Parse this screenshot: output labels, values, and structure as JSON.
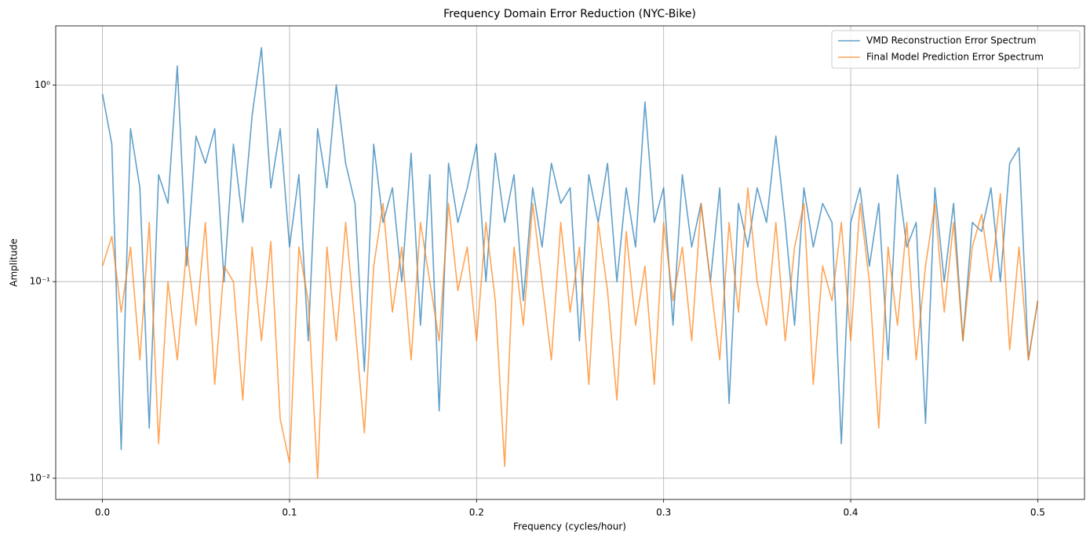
{
  "chart_data": {
    "type": "line",
    "title": "Frequency Domain Error Reduction (NYC-Bike)",
    "xlabel": "Frequency (cycles/hour)",
    "ylabel": "Amplitude",
    "yscale": "log",
    "grid": true,
    "legend": "upper right",
    "alpha": 0.7,
    "xlim": [
      -0.025,
      0.525
    ],
    "ylim": [
      0.0078,
      2.0
    ],
    "xticks": [
      {
        "value": 0,
        "label": "0.0"
      },
      0.1,
      0.2,
      0.3,
      0.4,
      0.5
    ],
    "yticks": [
      {
        "value": 0.01,
        "label": "10⁻²"
      },
      {
        "value": 0.1,
        "label": "10⁻¹"
      },
      {
        "value": 1,
        "label": "10⁰"
      }
    ],
    "x": [
      0,
      0.005,
      0.01,
      0.015,
      0.02,
      0.025,
      0.03,
      0.035,
      0.04,
      0.045,
      0.05,
      0.055,
      0.06,
      0.065,
      0.07,
      0.075,
      0.08,
      0.085,
      0.09,
      0.095,
      0.1,
      0.105,
      0.11,
      0.115,
      0.12,
      0.125,
      0.13,
      0.135,
      0.14,
      0.145,
      0.15,
      0.155,
      0.16,
      0.165,
      0.17,
      0.175,
      0.18,
      0.185,
      0.19,
      0.195,
      0.2,
      0.205,
      0.21,
      0.215,
      0.22,
      0.225,
      0.23,
      0.235,
      0.24,
      0.245,
      0.25,
      0.255,
      0.26,
      0.265,
      0.27,
      0.275,
      0.28,
      0.285,
      0.29,
      0.295,
      0.3,
      0.305,
      0.31,
      0.315,
      0.32,
      0.325,
      0.33,
      0.335,
      0.34,
      0.345,
      0.35,
      0.355,
      0.36,
      0.365,
      0.37,
      0.375,
      0.38,
      0.385,
      0.39,
      0.395,
      0.4,
      0.405,
      0.41,
      0.415,
      0.42,
      0.425,
      0.43,
      0.435,
      0.44,
      0.445,
      0.45,
      0.455,
      0.46,
      0.465,
      0.47,
      0.475,
      0.48,
      0.485,
      0.49,
      0.495,
      0.5
    ],
    "series": [
      {
        "name": "VMD Reconstruction Error Spectrum",
        "color": "#1f77b4",
        "values": [
          0.9,
          0.5,
          0.014,
          0.6,
          0.3,
          0.018,
          0.35,
          0.25,
          1.25,
          0.12,
          0.55,
          0.4,
          0.6,
          0.1,
          0.5,
          0.2,
          0.7,
          1.55,
          0.3,
          0.6,
          0.15,
          0.35,
          0.05,
          0.6,
          0.3,
          1.0,
          0.4,
          0.25,
          0.035,
          0.5,
          0.2,
          0.3,
          0.1,
          0.45,
          0.06,
          0.35,
          0.022,
          0.4,
          0.2,
          0.3,
          0.5,
          0.1,
          0.45,
          0.2,
          0.35,
          0.08,
          0.3,
          0.15,
          0.4,
          0.25,
          0.3,
          0.05,
          0.35,
          0.2,
          0.4,
          0.1,
          0.3,
          0.15,
          0.82,
          0.2,
          0.3,
          0.06,
          0.35,
          0.15,
          0.25,
          0.1,
          0.3,
          0.024,
          0.25,
          0.15,
          0.3,
          0.2,
          0.55,
          0.2,
          0.06,
          0.3,
          0.15,
          0.25,
          0.2,
          0.015,
          0.2,
          0.3,
          0.12,
          0.25,
          0.04,
          0.35,
          0.15,
          0.2,
          0.019,
          0.3,
          0.1,
          0.25,
          0.05,
          0.2,
          0.18,
          0.3,
          0.1,
          0.4,
          0.48,
          0.04,
          0.08
        ]
      },
      {
        "name": "Final Model Prediction Error Spectrum",
        "color": "#ff7f0e",
        "values": [
          0.12,
          0.17,
          0.07,
          0.15,
          0.04,
          0.2,
          0.015,
          0.1,
          0.04,
          0.15,
          0.06,
          0.2,
          0.03,
          0.12,
          0.1,
          0.025,
          0.15,
          0.05,
          0.16,
          0.02,
          0.012,
          0.15,
          0.08,
          0.01,
          0.15,
          0.05,
          0.2,
          0.06,
          0.017,
          0.12,
          0.25,
          0.07,
          0.15,
          0.04,
          0.2,
          0.1,
          0.05,
          0.25,
          0.09,
          0.15,
          0.05,
          0.2,
          0.08,
          0.0115,
          0.15,
          0.06,
          0.25,
          0.1,
          0.04,
          0.2,
          0.07,
          0.15,
          0.03,
          0.2,
          0.09,
          0.025,
          0.18,
          0.06,
          0.12,
          0.03,
          0.2,
          0.08,
          0.15,
          0.05,
          0.25,
          0.1,
          0.04,
          0.2,
          0.07,
          0.3,
          0.1,
          0.06,
          0.2,
          0.05,
          0.15,
          0.25,
          0.03,
          0.12,
          0.08,
          0.2,
          0.05,
          0.25,
          0.1,
          0.018,
          0.15,
          0.06,
          0.2,
          0.04,
          0.12,
          0.25,
          0.07,
          0.2,
          0.05,
          0.15,
          0.22,
          0.1,
          0.28,
          0.045,
          0.15,
          0.04,
          0.08
        ]
      }
    ]
  }
}
